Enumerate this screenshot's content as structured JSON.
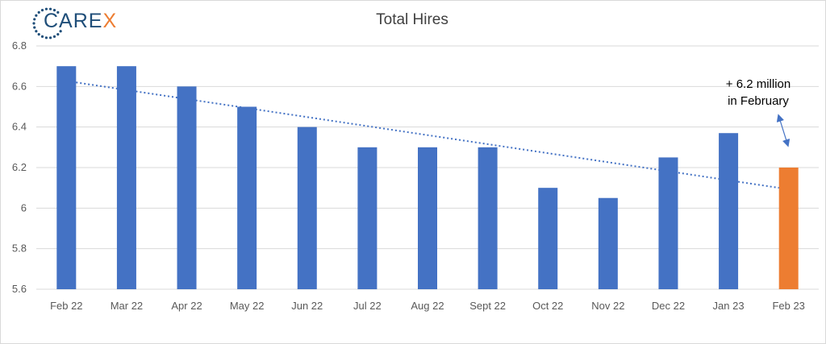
{
  "logo": {
    "text_main": "CARE",
    "text_accent": "X",
    "accent_color": "#ed7d31",
    "main_color": "#1f4e79"
  },
  "chart_data": {
    "type": "bar",
    "title": "Total Hires",
    "xlabel": "",
    "ylabel": "",
    "categories": [
      "Feb 22",
      "Mar 22",
      "Apr 22",
      "May 22",
      "Jun 22",
      "Jul 22",
      "Aug 22",
      "Sept 22",
      "Oct 22",
      "Nov 22",
      "Dec 22",
      "Jan 23",
      "Feb 23"
    ],
    "values": [
      6.7,
      6.7,
      6.6,
      6.5,
      6.4,
      6.3,
      6.3,
      6.3,
      6.1,
      6.05,
      6.25,
      6.37,
      6.2
    ],
    "highlight_index": 12,
    "colors": {
      "bar": "#4472c4",
      "highlight": "#ed7d31",
      "trend": "#4472c4",
      "grid": "#d9d9d9"
    },
    "ylim": [
      5.6,
      6.8
    ],
    "yticks": [
      5.6,
      5.8,
      6,
      6.2,
      6.4,
      6.6,
      6.8
    ],
    "ytick_labels": [
      "5.6",
      "5.8",
      "6",
      "6.2",
      "6.4",
      "6.6",
      "6.8"
    ],
    "grid": true,
    "trendline": {
      "type": "linear",
      "style": "dotted",
      "start_value": 6.62,
      "end_value": 6.1
    },
    "annotation": {
      "line1": "+ 6.2 million",
      "line2": "in February"
    }
  }
}
